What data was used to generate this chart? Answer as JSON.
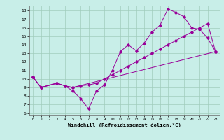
{
  "bg_color": "#c8eee8",
  "grid_color": "#a0ccbc",
  "line_color": "#990099",
  "xlim": [
    -0.5,
    23.5
  ],
  "ylim": [
    5.8,
    18.6
  ],
  "xticks": [
    0,
    1,
    2,
    3,
    4,
    5,
    6,
    7,
    8,
    9,
    10,
    11,
    12,
    13,
    14,
    15,
    16,
    17,
    18,
    19,
    20,
    21,
    22,
    23
  ],
  "yticks": [
    6,
    7,
    8,
    9,
    10,
    11,
    12,
    13,
    14,
    15,
    16,
    17,
    18
  ],
  "xlabel": "Windchill (Refroidissement éolien,°C)",
  "line1_x": [
    0,
    1,
    3,
    4,
    5,
    6,
    7,
    8,
    9,
    10,
    11,
    12,
    13,
    14,
    15,
    16,
    17,
    18,
    19,
    20,
    21,
    22,
    23
  ],
  "line1_y": [
    10.2,
    9.0,
    9.5,
    9.2,
    8.6,
    7.7,
    6.5,
    8.6,
    9.3,
    11.0,
    13.2,
    14.0,
    13.3,
    14.2,
    15.5,
    16.3,
    18.2,
    17.8,
    17.3,
    16.0,
    15.8,
    14.8,
    13.2
  ],
  "line2_x": [
    0,
    1,
    3,
    4,
    5,
    23
  ],
  "line2_y": [
    10.2,
    9.0,
    9.5,
    9.2,
    9.0,
    13.2
  ],
  "line3_x": [
    0,
    1,
    3,
    4,
    5,
    6,
    7,
    8,
    9,
    10,
    11,
    12,
    13,
    14,
    15,
    16,
    17,
    18,
    19,
    20,
    21,
    22,
    23
  ],
  "line3_y": [
    10.2,
    9.0,
    9.5,
    9.2,
    9.0,
    9.2,
    9.3,
    9.5,
    10.0,
    10.5,
    11.0,
    11.5,
    12.0,
    12.5,
    13.0,
    13.5,
    14.0,
    14.5,
    15.0,
    15.5,
    16.0,
    16.5,
    13.2
  ]
}
